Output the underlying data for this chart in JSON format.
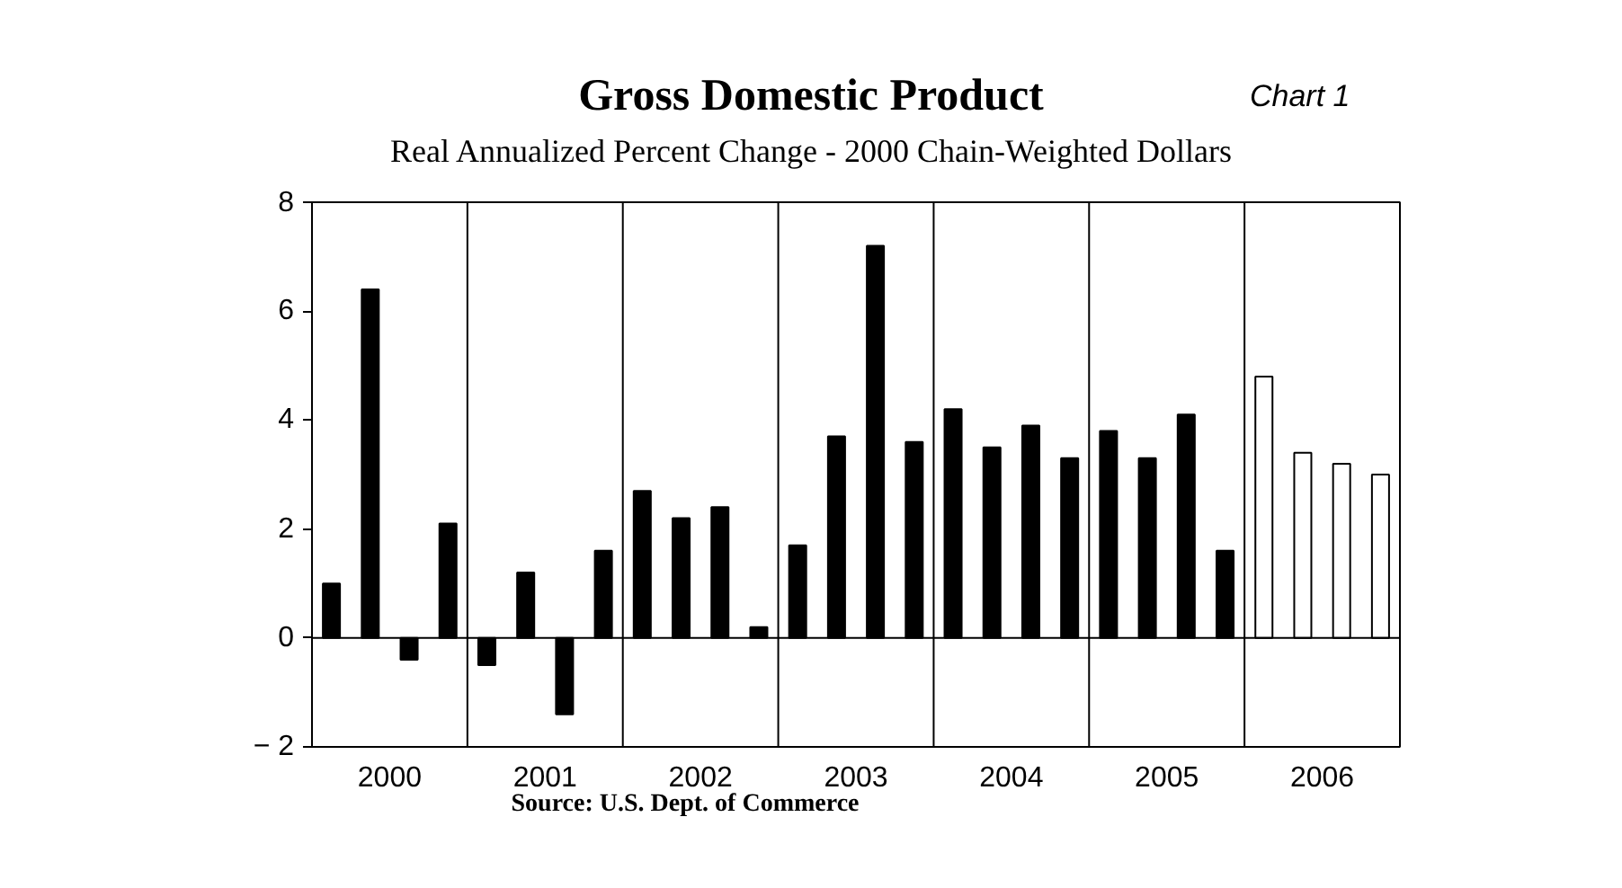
{
  "chart_data": {
    "type": "bar",
    "title": "Gross Domestic Product",
    "subtitle": "Real Annualized Percent Change - 2000 Chain-Weighted Dollars",
    "annotations": [
      "Chart 1",
      "Source: U.S. Dept. of Commerce"
    ],
    "x": [
      2000.125,
      2000.375,
      2000.625,
      2000.875,
      2001.125,
      2001.375,
      2001.625,
      2001.875,
      2002.125,
      2002.375,
      2002.625,
      2002.875,
      2003.125,
      2003.375,
      2003.625,
      2003.875,
      2004.125,
      2004.375,
      2004.625,
      2004.875,
      2005.125,
      2005.375,
      2005.625,
      2005.875,
      2006.125,
      2006.375,
      2006.625,
      2006.875
    ],
    "values": [
      1.0,
      6.4,
      -0.4,
      2.1,
      -0.5,
      1.2,
      -1.4,
      1.6,
      2.7,
      2.2,
      2.4,
      0.2,
      1.7,
      3.7,
      7.2,
      3.6,
      4.2,
      3.5,
      3.9,
      3.3,
      3.8,
      3.3,
      4.1,
      1.6,
      4.8,
      3.4,
      3.2,
      3.0
    ],
    "colors": [
      "#000000",
      "#000000",
      "#000000",
      "#000000",
      "#000000",
      "#000000",
      "#000000",
      "#000000",
      "#000000",
      "#000000",
      "#000000",
      "#000000",
      "#000000",
      "#000000",
      "#000000",
      "#000000",
      "#000000",
      "#000000",
      "#000000",
      "#000000",
      "#000000",
      "#000000",
      "#000000",
      "#000000",
      "#ffffff",
      "#ffffff",
      "#ffffff",
      "#ffffff"
    ],
    "xlim": [
      2000,
      2007
    ],
    "xticks": [
      {
        "value": 2000.5,
        "label": "2000"
      },
      {
        "value": 2001.5,
        "label": "2001"
      },
      {
        "value": 2002.5,
        "label": "2002"
      },
      {
        "value": 2003.5,
        "label": "2003"
      },
      {
        "value": 2004.5,
        "label": "2004"
      },
      {
        "value": 2005.5,
        "label": "2005"
      },
      {
        "value": 2006.5,
        "label": "2006"
      }
    ],
    "ylim": [
      -2,
      8
    ],
    "yticks": [
      -2,
      0,
      2,
      4,
      6,
      8
    ],
    "ref_lines": [
      {
        "axis": "y",
        "value": 0,
        "color": "#000000"
      },
      {
        "axis": "x",
        "value": 2001,
        "color": "#000000"
      },
      {
        "axis": "x",
        "value": 2002,
        "color": "#000000"
      },
      {
        "axis": "x",
        "value": 2003,
        "color": "#000000"
      },
      {
        "axis": "x",
        "value": 2004,
        "color": "#000000"
      },
      {
        "axis": "x",
        "value": 2005,
        "color": "#000000"
      },
      {
        "axis": "x",
        "value": 2006,
        "color": "#000000"
      }
    ],
    "grid": false
  }
}
